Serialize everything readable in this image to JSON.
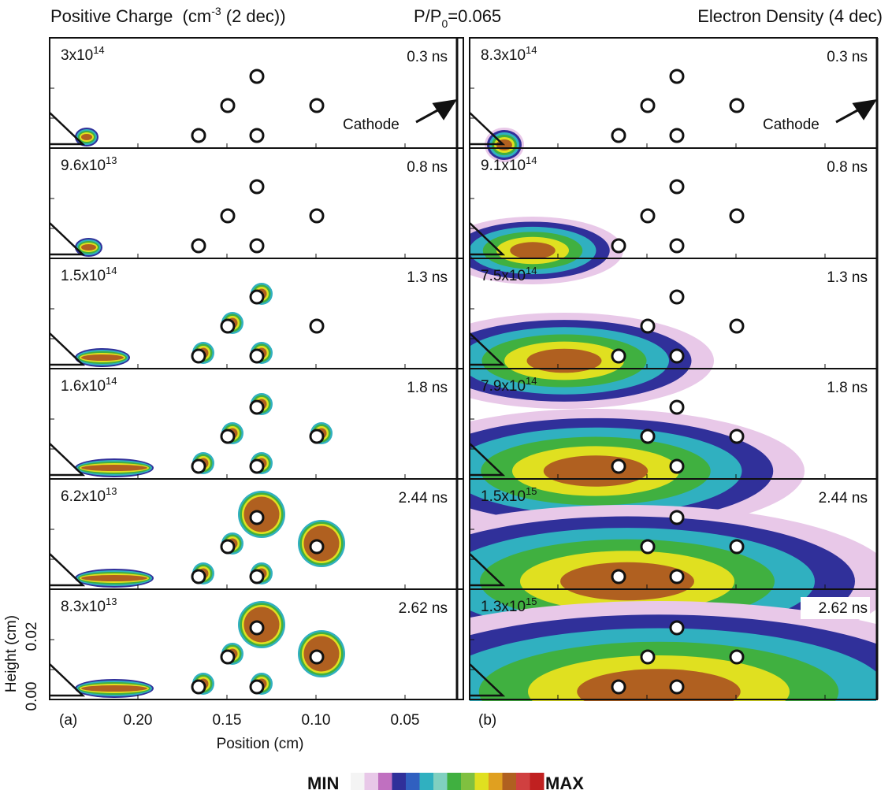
{
  "header": {
    "left_title": [
      "Positive Charge  (cm",
      "-3",
      " (2 dec))"
    ],
    "center_title": [
      "P/P",
      "0",
      "=0.065"
    ],
    "right_title": "Electron Density (4 dec)"
  },
  "panels": [
    {
      "label": "(a)",
      "annotation": "Cathode",
      "rows": [
        {
          "peak": "3x10",
          "exp": "14",
          "time": "0.3 ns"
        },
        {
          "peak": "9.6x10",
          "exp": "13",
          "time": "0.8 ns"
        },
        {
          "peak": "1.5x10",
          "exp": "14",
          "time": "1.3 ns"
        },
        {
          "peak": "1.6x10",
          "exp": "14",
          "time": "1.8 ns"
        },
        {
          "peak": "6.2x10",
          "exp": "13",
          "time": "2.44 ns"
        },
        {
          "peak": "8.3x10",
          "exp": "13",
          "time": "2.62 ns"
        }
      ],
      "x_axis": {
        "title": "Position (cm)",
        "ticks": [
          "0.20",
          "0.15",
          "0.10",
          "0.05"
        ]
      },
      "y_axis": {
        "title": "Height (cm)",
        "ticks": [
          "0.00",
          "0.02"
        ]
      }
    },
    {
      "label": "(b)",
      "annotation": "Cathode",
      "rows": [
        {
          "peak": "8.3x10",
          "exp": "14",
          "time": "0.3 ns"
        },
        {
          "peak": "9.1x10",
          "exp": "14",
          "time": "0.8 ns"
        },
        {
          "peak": "7.5x10",
          "exp": "14",
          "time": "1.3 ns"
        },
        {
          "peak": "7.9x10",
          "exp": "14",
          "time": "1.8 ns"
        },
        {
          "peak": "1.5x10",
          "exp": "15",
          "time": "2.44 ns"
        },
        {
          "peak": "1.3x10",
          "exp": "15",
          "time": "2.62 ns"
        }
      ]
    }
  ],
  "colorbar": {
    "min": "MIN",
    "max": "MAX",
    "colors": [
      "#f4f4f4",
      "#e8c8e8",
      "#c070c0",
      "#30309a",
      "#3060c0",
      "#30b0c0",
      "#80d0c0",
      "#40b040",
      "#80c040",
      "#e0e020",
      "#e0a020",
      "#b06020",
      "#d04040",
      "#c02020"
    ]
  }
}
